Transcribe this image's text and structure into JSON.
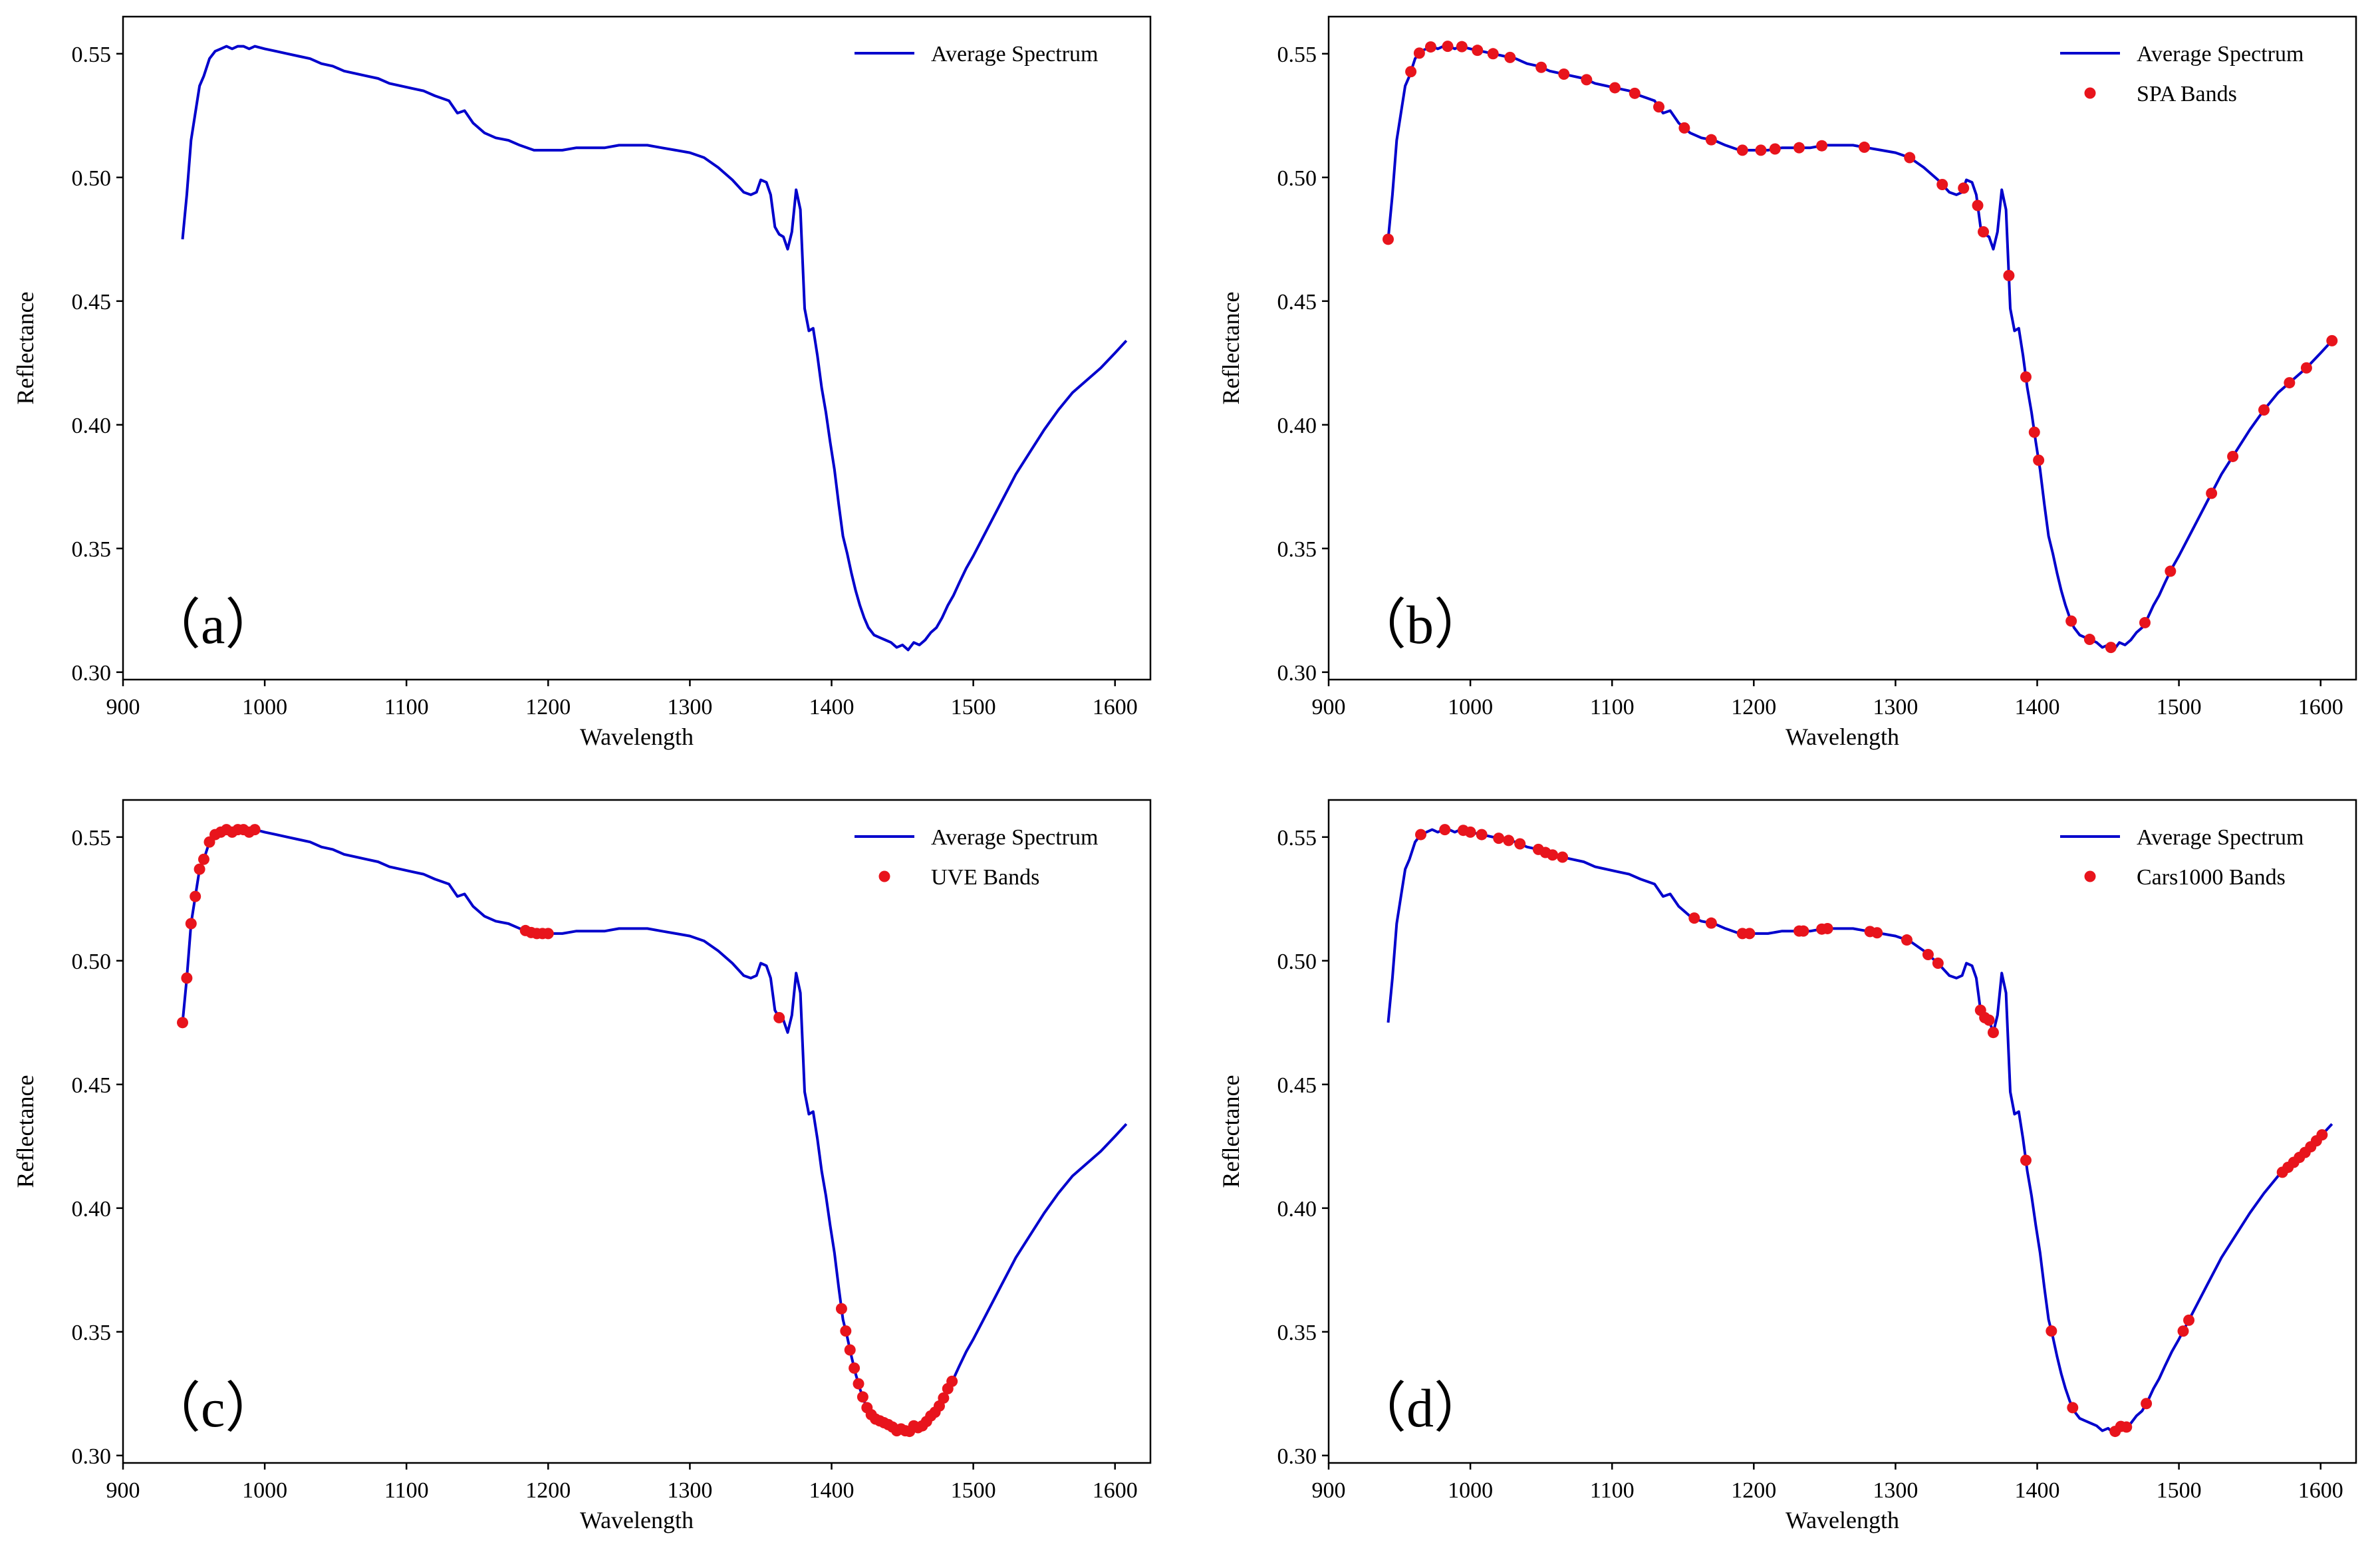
{
  "chart_data": [
    {
      "panel_label": "（a）",
      "type": "line",
      "xlabel": "Wavelength",
      "ylabel": "Reflectance",
      "xlim": [
        900,
        1625
      ],
      "ylim": [
        0.297,
        0.565
      ],
      "xticks": [
        900,
        1000,
        1100,
        1200,
        1300,
        1400,
        1500,
        1600
      ],
      "yticks": [
        0.3,
        0.35,
        0.4,
        0.45,
        0.5,
        0.55
      ],
      "legend_position": "top-right",
      "series": [
        {
          "name": "Average Spectrum",
          "type": "line",
          "color": "#0000cc"
        }
      ],
      "marker_series": null
    },
    {
      "panel_label": "（b）",
      "type": "line",
      "xlabel": "Wavelength",
      "ylabel": "Reflectance",
      "xlim": [
        900,
        1625
      ],
      "ylim": [
        0.297,
        0.565
      ],
      "xticks": [
        900,
        1000,
        1100,
        1200,
        1300,
        1400,
        1500,
        1600
      ],
      "yticks": [
        0.3,
        0.35,
        0.4,
        0.45,
        0.5,
        0.55
      ],
      "legend_position": "top-right",
      "series": [
        {
          "name": "Average Spectrum",
          "type": "line",
          "color": "#0000cc"
        }
      ],
      "marker_series": {
        "name": "SPA Bands",
        "color": "#e8141c",
        "x": [
          942,
          958,
          964,
          972,
          984,
          994,
          1005,
          1016,
          1028,
          1050,
          1066,
          1082,
          1102,
          1116,
          1133,
          1151,
          1170,
          1192,
          1205,
          1215,
          1232,
          1248,
          1278,
          1310,
          1333,
          1348,
          1358,
          1362,
          1380,
          1392,
          1398,
          1401,
          1424,
          1437,
          1452,
          1476,
          1494,
          1523,
          1538,
          1560,
          1578,
          1590,
          1608
        ]
      }
    },
    {
      "panel_label": "（c）",
      "type": "line",
      "xlabel": "Wavelength",
      "ylabel": "Reflectance",
      "xlim": [
        900,
        1625
      ],
      "ylim": [
        0.297,
        0.565
      ],
      "xticks": [
        900,
        1000,
        1100,
        1200,
        1300,
        1400,
        1500,
        1600
      ],
      "yticks": [
        0.3,
        0.35,
        0.4,
        0.45,
        0.5,
        0.55
      ],
      "legend_position": "top-right",
      "series": [
        {
          "name": "Average Spectrum",
          "type": "line",
          "color": "#0000cc"
        }
      ],
      "marker_series": {
        "name": "UVE Bands",
        "color": "#e8141c",
        "x": [
          942,
          945,
          948,
          951,
          954,
          957,
          961,
          965,
          969,
          973,
          977,
          981,
          985,
          989,
          993,
          1184,
          1188,
          1192,
          1196,
          1200,
          1363,
          1407,
          1410,
          1413,
          1416,
          1419,
          1422,
          1425,
          1428,
          1431,
          1434,
          1437,
          1440,
          1443,
          1446,
          1449,
          1452,
          1455,
          1458,
          1461,
          1464,
          1467,
          1470,
          1473,
          1476,
          1479,
          1482,
          1485
        ]
      }
    },
    {
      "panel_label": "（d）",
      "type": "line",
      "xlabel": "Wavelength",
      "ylabel": "Reflectance",
      "xlim": [
        900,
        1625
      ],
      "ylim": [
        0.297,
        0.565
      ],
      "xticks": [
        900,
        1000,
        1100,
        1200,
        1300,
        1400,
        1500,
        1600
      ],
      "yticks": [
        0.3,
        0.35,
        0.4,
        0.45,
        0.5,
        0.55
      ],
      "legend_position": "top-right",
      "series": [
        {
          "name": "Average Spectrum",
          "type": "line",
          "color": "#0000cc"
        }
      ],
      "marker_series": {
        "name": "Cars1000 Bands",
        "color": "#e8141c",
        "x": [
          965,
          982,
          995,
          1000,
          1008,
          1020,
          1027,
          1035,
          1048,
          1053,
          1058,
          1065,
          1158,
          1170,
          1192,
          1197,
          1232,
          1235,
          1248,
          1252,
          1282,
          1287,
          1308,
          1323,
          1330,
          1360,
          1363,
          1366,
          1369,
          1392,
          1410,
          1425,
          1455,
          1459,
          1463,
          1477,
          1503,
          1507,
          1573,
          1577,
          1581,
          1585,
          1589,
          1593,
          1597,
          1601
        ]
      }
    }
  ],
  "spectrum": {
    "x": [
      942,
      945,
      948,
      951,
      954,
      957,
      961,
      965,
      969,
      973,
      977,
      981,
      985,
      989,
      993,
      1000,
      1008,
      1016,
      1024,
      1032,
      1040,
      1048,
      1056,
      1064,
      1072,
      1080,
      1088,
      1096,
      1104,
      1112,
      1120,
      1125,
      1130,
      1136,
      1141,
      1147,
      1155,
      1163,
      1172,
      1180,
      1190,
      1200,
      1210,
      1220,
      1230,
      1240,
      1250,
      1260,
      1270,
      1280,
      1290,
      1300,
      1310,
      1320,
      1330,
      1338,
      1343,
      1347,
      1350,
      1354,
      1357,
      1360,
      1363,
      1366,
      1369,
      1372,
      1375,
      1378,
      1381,
      1384,
      1387,
      1390,
      1393,
      1396,
      1399,
      1402,
      1405,
      1408,
      1411,
      1414,
      1417,
      1420,
      1423,
      1426,
      1430,
      1434,
      1438,
      1442,
      1446,
      1450,
      1454,
      1458,
      1462,
      1466,
      1470,
      1474,
      1478,
      1482,
      1486,
      1490,
      1495,
      1500,
      1510,
      1520,
      1530,
      1540,
      1550,
      1560,
      1570,
      1580,
      1590,
      1600,
      1608
    ],
    "y": [
      0.475,
      0.493,
      0.515,
      0.526,
      0.537,
      0.541,
      0.548,
      0.551,
      0.552,
      0.553,
      0.552,
      0.553,
      0.553,
      0.552,
      0.553,
      0.552,
      0.551,
      0.55,
      0.549,
      0.548,
      0.546,
      0.545,
      0.543,
      0.542,
      0.541,
      0.54,
      0.538,
      0.537,
      0.536,
      0.535,
      0.533,
      0.532,
      0.531,
      0.526,
      0.527,
      0.522,
      0.518,
      0.516,
      0.515,
      0.513,
      0.511,
      0.511,
      0.511,
      0.512,
      0.512,
      0.512,
      0.513,
      0.513,
      0.513,
      0.512,
      0.511,
      0.51,
      0.508,
      0.504,
      0.499,
      0.494,
      0.493,
      0.494,
      0.499,
      0.498,
      0.493,
      0.48,
      0.477,
      0.476,
      0.471,
      0.478,
      0.495,
      0.487,
      0.447,
      0.438,
      0.439,
      0.428,
      0.415,
      0.405,
      0.393,
      0.382,
      0.368,
      0.355,
      0.348,
      0.34,
      0.333,
      0.327,
      0.322,
      0.318,
      0.315,
      0.314,
      0.313,
      0.312,
      0.31,
      0.311,
      0.309,
      0.312,
      0.311,
      0.313,
      0.316,
      0.318,
      0.322,
      0.327,
      0.331,
      0.336,
      0.342,
      0.347,
      0.358,
      0.369,
      0.38,
      0.389,
      0.398,
      0.406,
      0.413,
      0.418,
      0.423,
      0.429,
      0.434
    ]
  }
}
